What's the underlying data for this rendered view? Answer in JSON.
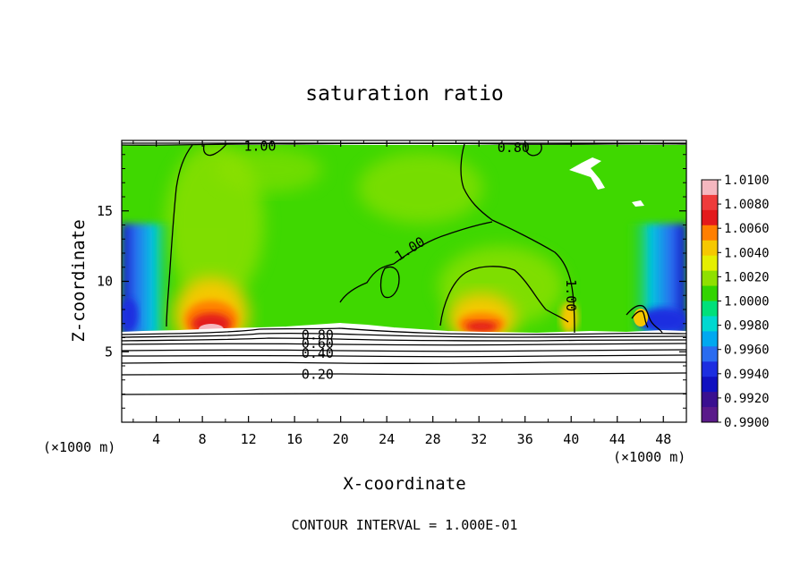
{
  "chart_data": {
    "type": "heatmap",
    "title": "saturation ratio",
    "xlabel": "X-coordinate",
    "ylabel": "Z-coordinate",
    "x_unit_left": "(×1000 m)",
    "x_unit_right": "(×1000 m)",
    "footer": "CONTOUR INTERVAL = 1.000E-01",
    "xlim": [
      1,
      50
    ],
    "ylim": [
      0,
      20
    ],
    "x_ticks": [
      4,
      8,
      12,
      16,
      20,
      24,
      28,
      32,
      36,
      40,
      44,
      48
    ],
    "y_ticks": [
      5,
      10,
      15
    ],
    "contour_labels": [
      {
        "text": "1.00",
        "x": 13,
        "z": 19.6
      },
      {
        "text": "0.80",
        "x": 35,
        "z": 19.5
      },
      {
        "text": "1.00",
        "x": 26,
        "z": 12.3
      },
      {
        "text": "1.00",
        "x": 40,
        "z": 9.0
      },
      {
        "text": "0.80",
        "x": 18,
        "z": 6.2
      },
      {
        "text": "0.60",
        "x": 18,
        "z": 5.6
      },
      {
        "text": "0.40",
        "x": 18,
        "z": 4.9
      },
      {
        "text": "0.20",
        "x": 18,
        "z": 3.4
      }
    ],
    "colorbar": {
      "labels": [
        "1.0100",
        "1.0080",
        "1.0060",
        "1.0040",
        "1.0020",
        "1.0000",
        "0.9980",
        "0.9960",
        "0.9940",
        "0.9920",
        "0.9900"
      ],
      "colors": [
        "#f5b7bf",
        "#ee3b3b",
        "#e31a1c",
        "#ff7f00",
        "#f6c800",
        "#e5ef00",
        "#8fe000",
        "#33d400",
        "#00e07a",
        "#00d8d0",
        "#00a8f0",
        "#2a6cf0",
        "#1c2ee0",
        "#1010c0",
        "#3a1090",
        "#5a1a8a"
      ]
    }
  }
}
